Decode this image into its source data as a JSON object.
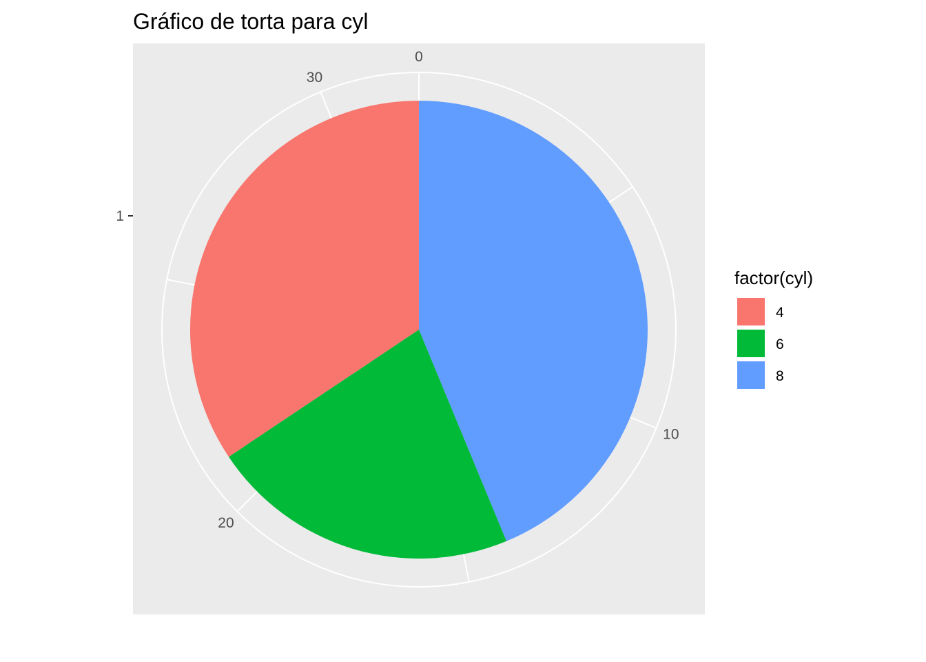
{
  "chart_data": {
    "type": "pie",
    "title": "Gráfico de torta para cyl",
    "categories": [
      "4",
      "6",
      "8"
    ],
    "values": [
      11,
      7,
      14
    ],
    "colors": [
      "#F8766D",
      "#00BA38",
      "#619CFF"
    ],
    "angular_axis": {
      "range": [
        0,
        32
      ],
      "ticks": [
        0,
        10,
        20,
        30
      ],
      "tick_labels": [
        "0",
        "10",
        "20",
        "30"
      ]
    },
    "radial_axis": {
      "tick_labels": [
        "1"
      ]
    },
    "panel_background": "#EBEBEB",
    "grid_color": "#FFFFFF",
    "grid": true,
    "legend": {
      "title": "factor(cyl)",
      "position": "right",
      "items": [
        "4",
        "6",
        "8"
      ]
    }
  }
}
